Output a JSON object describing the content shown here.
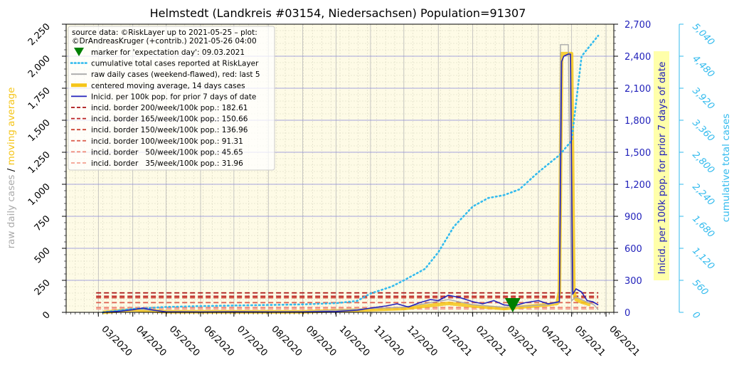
{
  "chart_data": {
    "type": "line",
    "title": "Helmstedt (Landkreis #03154, Niedersachsen) Population=91307",
    "left_axis": {
      "label_parts": [
        "raw daily cases",
        "/",
        "moving average"
      ],
      "label_colors": [
        "#aaaaaa",
        "#000000",
        "#f5c518"
      ],
      "ticks": [
        "0",
        "250",
        "500",
        "750",
        "1,000",
        "1,250",
        "1,500",
        "1,750",
        "2,000",
        "2,250"
      ],
      "ylim": [
        0,
        2250
      ]
    },
    "right_axis_1": {
      "label": "Inicid. per 100k pop. for prior 7 days of date",
      "color": "#2222bb",
      "ticks": [
        "0",
        "300",
        "600",
        "900",
        "1,200",
        "1,500",
        "1,800",
        "2,100",
        "2,400",
        "2,700"
      ],
      "ylim": [
        0,
        2700
      ]
    },
    "right_axis_2": {
      "label": "cumulative total cases",
      "color": "#33bbee",
      "ticks": [
        "0",
        "560",
        "1,120",
        "1,680",
        "2,240",
        "2,800",
        "3,360",
        "3,920",
        "4,480",
        "5,040"
      ],
      "ylim": [
        0,
        5040
      ]
    },
    "x_ticks": [
      "03/2020",
      "04/2020",
      "05/2020",
      "06/2020",
      "07/2020",
      "08/2020",
      "09/2020",
      "10/2020",
      "11/2020",
      "12/2020",
      "01/2021",
      "02/2021",
      "03/2021",
      "04/2021",
      "05/2021",
      "06/2021"
    ],
    "x_range": [
      "2020-02-01",
      "2021-06-08"
    ],
    "grid": true,
    "legend_placement": "top-left",
    "legend": [
      {
        "type": "triangle",
        "color": "#008000",
        "label": "marker for 'expectation day': 09.03.2021"
      },
      {
        "type": "dotted",
        "color": "#33bbee",
        "label": "cumulative total cases reported at RiskLayer"
      },
      {
        "type": "solid",
        "color": "#aaaaaa",
        "label": "raw daily cases (weekend-flawed), red: last 5"
      },
      {
        "type": "thick",
        "color": "#f5c518",
        "label": "centered moving average, 14 days cases"
      },
      {
        "type": "solid",
        "color": "#2222bb",
        "label": "Inicid. per 100k pop. for prior 7 days of date"
      },
      {
        "type": "dash",
        "color": "#aa1111",
        "label": "incid. border 200/week/100k pop.: 182.61"
      },
      {
        "type": "dash",
        "color": "#bb2222",
        "label": "incid. border 165/week/100k pop.: 150.66"
      },
      {
        "type": "dash",
        "color": "#cc4433",
        "label": "incid. border 150/week/100k pop.: 136.96"
      },
      {
        "type": "dash",
        "color": "#dd6655",
        "label": "incid. border 100/week/100k pop.: 91.31"
      },
      {
        "type": "dash",
        "color": "#ee8877",
        "label": "incid. border   50/week/100k pop.: 45.65"
      },
      {
        "type": "dash",
        "color": "#f4a090",
        "label": "incid. border   35/week/100k pop.: 31.96"
      }
    ],
    "source_text_lines": [
      "source data: ©RiskLayer up to 2021-05-25 – plot:",
      "©DrAndreasKruger (+contrib.) 2021-05-26 04:00"
    ],
    "expectation_marker": {
      "date": "2021-03-09",
      "value": 0
    },
    "incidence_borders": [
      {
        "level": 200,
        "value": 182.61,
        "color": "#aa1111"
      },
      {
        "level": 165,
        "value": 150.66,
        "color": "#bb2222"
      },
      {
        "level": 150,
        "value": 136.96,
        "color": "#cc4433"
      },
      {
        "level": 100,
        "value": 91.31,
        "color": "#dd6655"
      },
      {
        "level": 50,
        "value": 45.65,
        "color": "#ee8877"
      },
      {
        "level": 35,
        "value": 31.96,
        "color": "#f4a090"
      }
    ],
    "incidence_border_range": [
      "2020-02-28",
      "2021-05-25"
    ],
    "series": [
      {
        "name": "cumulative total cases reported at RiskLayer",
        "axis": "right_axis_2",
        "color": "#33bbee",
        "x": [
          "2020-03-05",
          "2020-04-01",
          "2020-05-01",
          "2020-06-01",
          "2020-07-01",
          "2020-08-01",
          "2020-09-01",
          "2020-10-01",
          "2020-10-20",
          "2020-11-01",
          "2020-11-20",
          "2020-12-01",
          "2020-12-20",
          "2021-01-01",
          "2021-01-15",
          "2021-02-01",
          "2021-02-15",
          "2021-03-01",
          "2021-03-15",
          "2021-04-01",
          "2021-04-20",
          "2021-05-01",
          "2021-05-10",
          "2021-05-25"
        ],
        "values": [
          0,
          60,
          95,
          110,
          120,
          130,
          140,
          160,
          200,
          330,
          450,
          560,
          760,
          1050,
          1500,
          1850,
          2000,
          2050,
          2150,
          2450,
          2750,
          3000,
          4480,
          4840
        ]
      },
      {
        "name": "Inicid. per 100k pop. for prior 7 days of date",
        "axis": "right_axis_1",
        "color": "#2222bb",
        "x": [
          "2020-03-05",
          "2020-03-20",
          "2020-04-01",
          "2020-04-10",
          "2020-04-20",
          "2020-05-01",
          "2020-06-01",
          "2020-07-01",
          "2020-08-01",
          "2020-09-01",
          "2020-10-01",
          "2020-10-20",
          "2020-11-01",
          "2020-11-15",
          "2020-11-25",
          "2020-12-05",
          "2020-12-15",
          "2020-12-25",
          "2021-01-01",
          "2021-01-10",
          "2021-01-20",
          "2021-02-01",
          "2021-02-10",
          "2021-02-20",
          "2021-03-01",
          "2021-03-10",
          "2021-03-20",
          "2021-04-01",
          "2021-04-10",
          "2021-04-20",
          "2021-04-22",
          "2021-04-24",
          "2021-04-28",
          "2021-04-30",
          "2021-05-02",
          "2021-05-05",
          "2021-05-10",
          "2021-05-15",
          "2021-05-20",
          "2021-05-25"
        ],
        "values": [
          0,
          10,
          25,
          40,
          20,
          5,
          2,
          5,
          3,
          4,
          8,
          20,
          40,
          60,
          80,
          50,
          90,
          120,
          110,
          160,
          140,
          100,
          80,
          110,
          70,
          60,
          90,
          110,
          80,
          100,
          2350,
          2400,
          2420,
          2420,
          170,
          220,
          190,
          110,
          100,
          70
        ]
      },
      {
        "name": "raw daily cases (weekend-flawed), red: last 5",
        "axis": "left_axis",
        "color": "#aaaaaa",
        "x": [
          "2020-03-05",
          "2020-04-01",
          "2020-05-01",
          "2020-09-01",
          "2020-11-01",
          "2020-12-01",
          "2021-01-10",
          "2021-02-01",
          "2021-03-01",
          "2021-04-10",
          "2021-04-20",
          "2021-04-21",
          "2021-04-28",
          "2021-05-01",
          "2021-05-05",
          "2021-05-10",
          "2021-05-15",
          "2021-05-21",
          "2021-05-25"
        ],
        "values": [
          0,
          30,
          5,
          5,
          30,
          40,
          100,
          60,
          40,
          60,
          80,
          2090,
          2090,
          90,
          120,
          100,
          80,
          60,
          20
        ]
      },
      {
        "name": "centered moving average, 14 days cases",
        "axis": "left_axis",
        "color": "#f5c518",
        "x": [
          "2020-03-05",
          "2020-04-01",
          "2020-05-01",
          "2020-09-01",
          "2020-11-01",
          "2020-12-01",
          "2021-01-10",
          "2021-02-01",
          "2021-03-01",
          "2021-04-10",
          "2021-04-18",
          "2021-04-20",
          "2021-04-22",
          "2021-05-01",
          "2021-05-03",
          "2021-05-05",
          "2021-05-10",
          "2021-05-18"
        ],
        "values": [
          0,
          20,
          5,
          4,
          20,
          30,
          70,
          50,
          30,
          60,
          70,
          160,
          2020,
          2020,
          160,
          100,
          80,
          60
        ]
      }
    ]
  }
}
